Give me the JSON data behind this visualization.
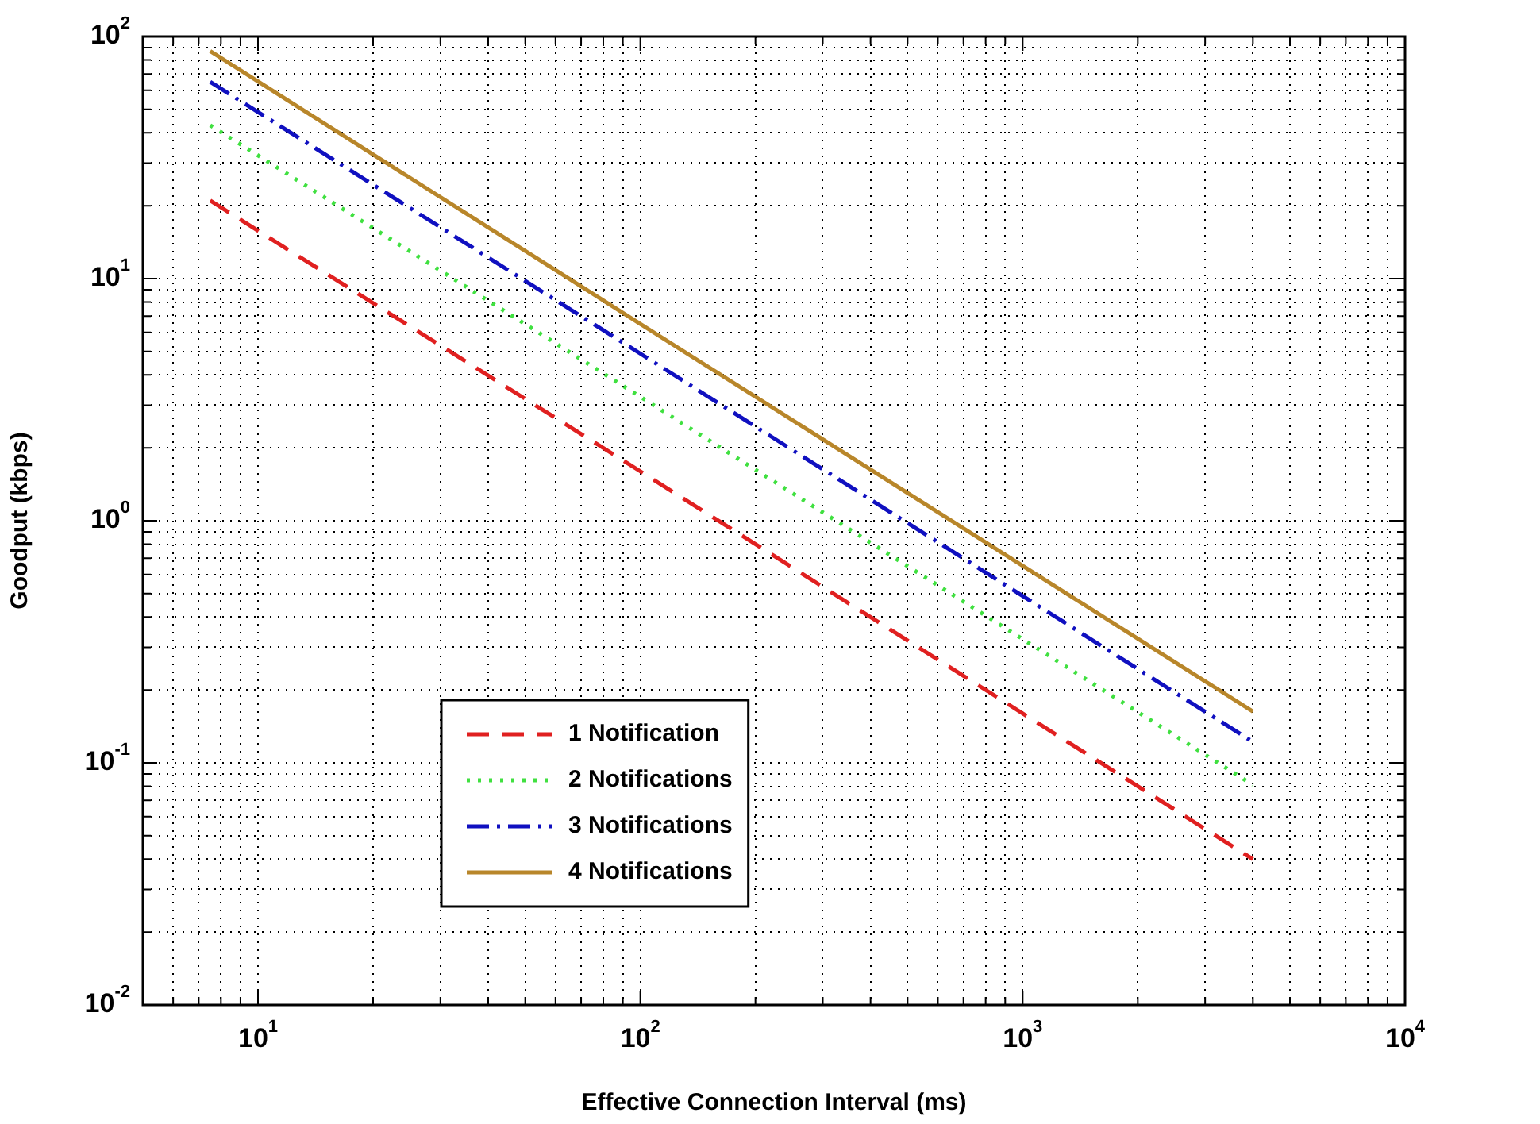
{
  "chart_data": {
    "type": "line",
    "xlabel": "Effective Connection Interval (ms)",
    "ylabel": "Goodput (kbps)",
    "log": "xy",
    "grid": true,
    "legend": "bottom left",
    "xlim": [
      5,
      10000
    ],
    "ylim": [
      0.01,
      100
    ],
    "xticks": [
      {
        "value": 6,
        "label": null
      },
      {
        "value": 7,
        "label": null
      },
      {
        "value": 8,
        "label": null
      },
      {
        "value": 9,
        "label": null
      },
      {
        "value": 10,
        "label": "10$^{1}$"
      },
      {
        "value": 20,
        "label": null
      },
      {
        "value": 30,
        "label": null
      },
      {
        "value": 40,
        "label": null
      },
      {
        "value": 50,
        "label": null
      },
      {
        "value": 60,
        "label": null
      },
      {
        "value": 70,
        "label": null
      },
      {
        "value": 80,
        "label": null
      },
      {
        "value": 90,
        "label": null
      },
      {
        "value": 100,
        "label": "10$^{2}$"
      },
      {
        "value": 200,
        "label": null
      },
      {
        "value": 300,
        "label": null
      },
      {
        "value": 400,
        "label": null
      },
      {
        "value": 500,
        "label": null
      },
      {
        "value": 600,
        "label": null
      },
      {
        "value": 700,
        "label": null
      },
      {
        "value": 800,
        "label": null
      },
      {
        "value": 900,
        "label": null
      },
      {
        "value": 1000,
        "label": "10$^{3}$"
      },
      {
        "value": 2000,
        "label": null
      },
      {
        "value": 3000,
        "label": null
      },
      {
        "value": 4000,
        "label": null
      },
      {
        "value": 5000,
        "label": null
      },
      {
        "value": 6000,
        "label": null
      },
      {
        "value": 7000,
        "label": null
      },
      {
        "value": 8000,
        "label": null
      },
      {
        "value": 9000,
        "label": null
      },
      {
        "value": 10000,
        "label": "10$^{4}$"
      }
    ],
    "yticks": [
      {
        "value": 0.01,
        "label": "10$^{-2}$"
      },
      {
        "value": 0.02,
        "label": null
      },
      {
        "value": 0.03,
        "label": null
      },
      {
        "value": 0.04,
        "label": null
      },
      {
        "value": 0.05,
        "label": null
      },
      {
        "value": 0.06,
        "label": null
      },
      {
        "value": 0.07,
        "label": null
      },
      {
        "value": 0.08,
        "label": null
      },
      {
        "value": 0.09,
        "label": null
      },
      {
        "value": 0.1,
        "label": "10$^{-1}$"
      },
      {
        "value": 0.2,
        "label": null
      },
      {
        "value": 0.3,
        "label": null
      },
      {
        "value": 0.4,
        "label": null
      },
      {
        "value": 0.5,
        "label": null
      },
      {
        "value": 0.6,
        "label": null
      },
      {
        "value": 0.7,
        "label": null
      },
      {
        "value": 0.8,
        "label": null
      },
      {
        "value": 0.9,
        "label": null
      },
      {
        "value": 1,
        "label": "10$^{0}$"
      },
      {
        "value": 2,
        "label": null
      },
      {
        "value": 3,
        "label": null
      },
      {
        "value": 4,
        "label": null
      },
      {
        "value": 5,
        "label": null
      },
      {
        "value": 6,
        "label": null
      },
      {
        "value": 7,
        "label": null
      },
      {
        "value": 8,
        "label": null
      },
      {
        "value": 9,
        "label": null
      },
      {
        "value": 10,
        "label": "10$^{1}$"
      },
      {
        "value": 20,
        "label": null
      },
      {
        "value": 30,
        "label": null
      },
      {
        "value": 40,
        "label": null
      },
      {
        "value": 50,
        "label": null
      },
      {
        "value": 60,
        "label": null
      },
      {
        "value": 70,
        "label": null
      },
      {
        "value": 80,
        "label": null
      },
      {
        "value": 90,
        "label": null
      },
      {
        "value": 100,
        "label": "10$^{2}$"
      }
    ],
    "x": [
      7.5,
      100,
      4000
    ],
    "series": [
      {
        "name": "1 Notification",
        "color": "#e02020",
        "line_style": "dashed",
        "values": [
          21,
          1.6,
          0.04
        ]
      },
      {
        "name": "2 Notifications",
        "color": "#40e040",
        "line_style": "dotted",
        "values": [
          43,
          3.25,
          0.081
        ]
      },
      {
        "name": "3 Notifications",
        "color": "#1010c0",
        "line_style": "dashdot",
        "values": [
          65,
          4.9,
          0.122
        ]
      },
      {
        "name": "4 Notifications",
        "color": "#b8862a",
        "line_style": "solid",
        "values": [
          87,
          6.5,
          0.163
        ]
      }
    ]
  }
}
